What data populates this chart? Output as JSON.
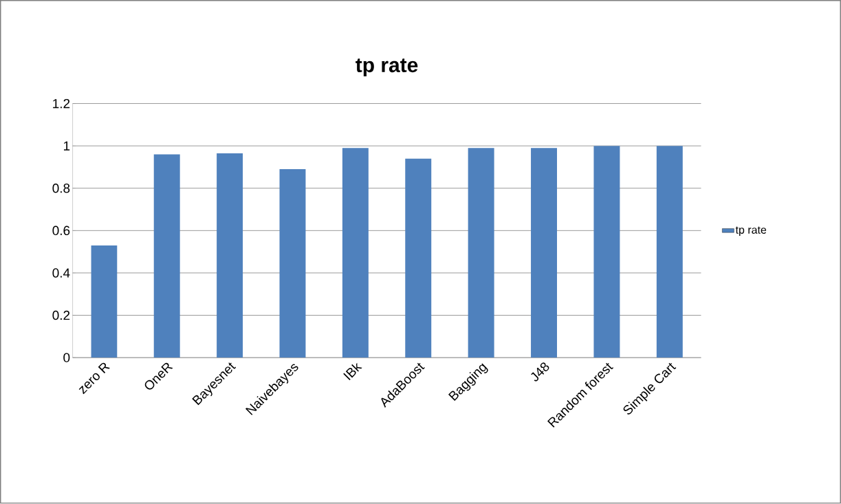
{
  "chart_data": {
    "type": "bar",
    "title": "tp rate",
    "categories": [
      "zero R",
      "OneR",
      "Bayesnet",
      "Naivebayes",
      "IBk",
      "AdaBoost",
      "Bagging",
      "J48",
      "Random forest",
      "Simple Cart"
    ],
    "series": [
      {
        "name": "tp rate",
        "color": "#4f81bd",
        "values": [
          0.53,
          0.96,
          0.965,
          0.89,
          0.99,
          0.94,
          0.99,
          0.99,
          1.0,
          1.0
        ]
      }
    ],
    "ylim": [
      0,
      1.2
    ],
    "yticks": [
      0,
      0.2,
      0.4,
      0.6,
      0.8,
      1,
      1.2
    ],
    "grid": "y",
    "legend": "right"
  }
}
